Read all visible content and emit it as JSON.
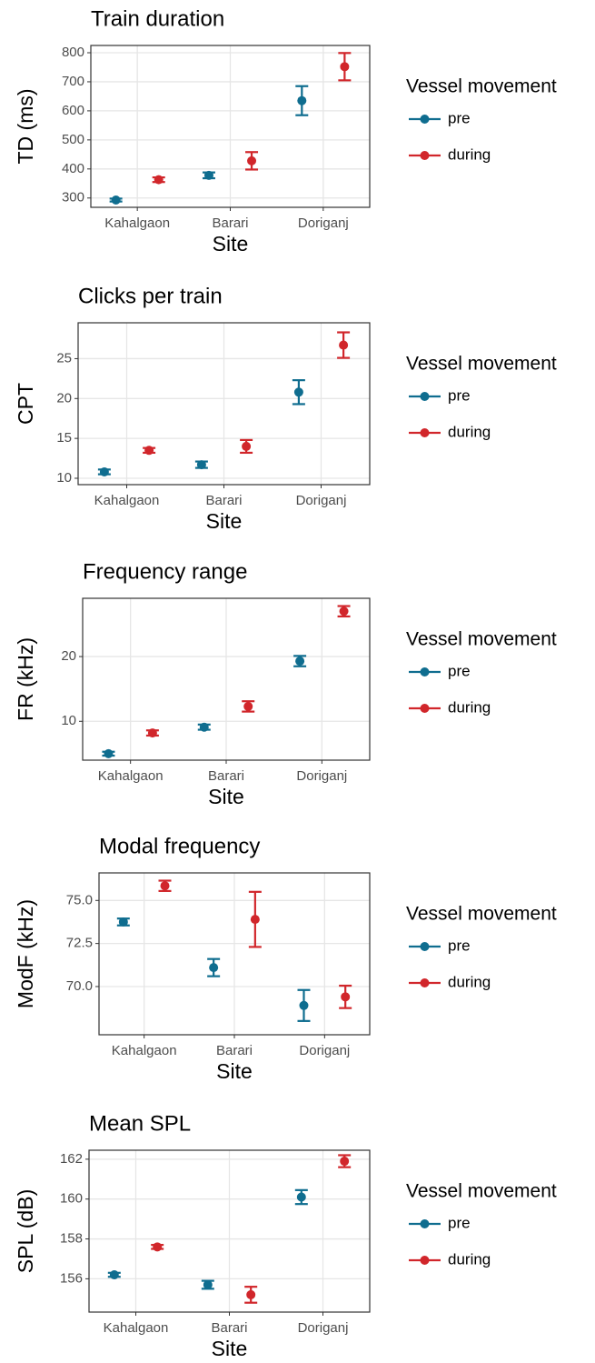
{
  "chart_data": [
    {
      "type": "errorpoint",
      "title": "Train duration",
      "x_label": "Site",
      "y_label": "TD (ms)",
      "legend_title": "Vessel movement",
      "categories": [
        "Kahalgaon",
        "Barari",
        "Doriganj"
      ],
      "series": [
        {
          "name": "pre",
          "color": "#0f6d8f",
          "values": [
            293,
            378,
            635
          ],
          "errors": [
            5,
            10,
            50
          ]
        },
        {
          "name": "during",
          "color": "#d1262b",
          "values": [
            363,
            428,
            752
          ],
          "errors": [
            8,
            30,
            47
          ]
        }
      ],
      "ylim": [
        268,
        825
      ],
      "yticks": [
        300,
        400,
        500,
        600,
        700,
        800
      ],
      "grid": true
    },
    {
      "type": "errorpoint",
      "title": "Clicks per train",
      "x_label": "Site",
      "y_label": "CPT",
      "legend_title": "Vessel movement",
      "categories": [
        "Kahalgaon",
        "Barari",
        "Doriganj"
      ],
      "series": [
        {
          "name": "pre",
          "color": "#0f6d8f",
          "values": [
            10.8,
            11.7,
            20.8
          ],
          "errors": [
            0.3,
            0.4,
            1.5
          ]
        },
        {
          "name": "during",
          "color": "#d1262b",
          "values": [
            13.5,
            14.0,
            26.7
          ],
          "errors": [
            0.3,
            0.8,
            1.6
          ]
        }
      ],
      "ylim": [
        9.2,
        29.5
      ],
      "yticks": [
        10,
        15,
        20,
        25
      ],
      "grid": true
    },
    {
      "type": "errorpoint",
      "title": "Frequency range",
      "x_label": "Site",
      "y_label": "FR (kHz)",
      "legend_title": "Vessel movement",
      "categories": [
        "Kahalgaon",
        "Barari",
        "Doriganj"
      ],
      "series": [
        {
          "name": "pre",
          "color": "#0f6d8f",
          "values": [
            5.0,
            9.1,
            19.3
          ],
          "errors": [
            0.3,
            0.4,
            0.8
          ]
        },
        {
          "name": "during",
          "color": "#d1262b",
          "values": [
            8.2,
            12.3,
            27.0
          ],
          "errors": [
            0.4,
            0.8,
            0.8
          ]
        }
      ],
      "ylim": [
        4.0,
        29.0
      ],
      "yticks": [
        10,
        20
      ],
      "grid": true
    },
    {
      "type": "errorpoint",
      "title": "Modal frequency",
      "x_label": "Site",
      "y_label": "ModF (kHz)",
      "legend_title": "Vessel movement",
      "categories": [
        "Kahalgaon",
        "Barari",
        "Doriganj"
      ],
      "series": [
        {
          "name": "pre",
          "color": "#0f6d8f",
          "values": [
            73.75,
            71.1,
            68.9
          ],
          "errors": [
            0.2,
            0.5,
            0.9
          ]
        },
        {
          "name": "during",
          "color": "#d1262b",
          "values": [
            75.85,
            73.9,
            69.4
          ],
          "errors": [
            0.3,
            1.6,
            0.65
          ]
        }
      ],
      "ylim": [
        67.2,
        76.6
      ],
      "yticks": [
        {
          "value": 70,
          "label": "70.0"
        },
        {
          "value": 72.5,
          "label": "72.5"
        },
        {
          "value": 75,
          "label": "75.0"
        }
      ],
      "grid": true
    },
    {
      "type": "errorpoint",
      "title": "Mean SPL",
      "x_label": "Site",
      "y_label": "SPL (dB)",
      "legend_title": "Vessel movement",
      "categories": [
        "Kahalgaon",
        "Barari",
        "Doriganj"
      ],
      "series": [
        {
          "name": "pre",
          "color": "#0f6d8f",
          "values": [
            156.2,
            155.7,
            160.1
          ],
          "errors": [
            0.1,
            0.2,
            0.35
          ]
        },
        {
          "name": "during",
          "color": "#d1262b",
          "values": [
            157.6,
            155.2,
            161.9
          ],
          "errors": [
            0.1,
            0.4,
            0.3
          ]
        }
      ],
      "ylim": [
        154.33,
        162.45
      ],
      "yticks": [
        156,
        158,
        160,
        162
      ],
      "grid": true
    }
  ]
}
